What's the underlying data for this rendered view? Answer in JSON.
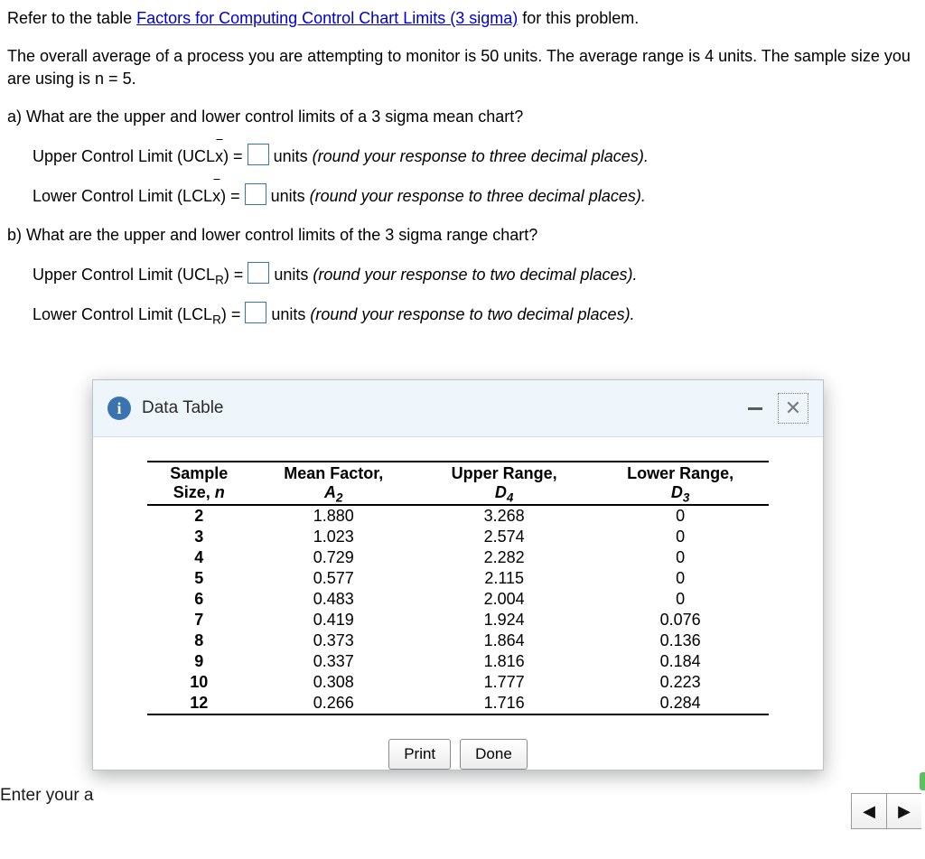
{
  "intro": {
    "prefix": "Refer to the table ",
    "link": "Factors for Computing Control Chart Limits (3 sigma)",
    "suffix": " for this problem."
  },
  "desc": "The overall average of a process you are attempting to monitor is 50 units. The average range is 4 units. The sample size you are using is n = 5.",
  "a_q": "a) What are the upper and lower control limits of a 3 sigma mean chart?",
  "a_ucl_pre": "Upper Control Limit (UCL",
  "a_ucl_post": ") = ",
  "a_lcl_pre": "Lower Control Limit (LCL",
  "a_lcl_post": ") = ",
  "units3": " units (round your response to three decimal places).",
  "b_q": "b) What are the upper and lower control limits of the 3 sigma range chart?",
  "bR": "R",
  "units2": " units (round your response to two decimal places).",
  "modal": {
    "title": "Data Table",
    "print": "Print",
    "done": "Done",
    "columns": {
      "c1a": "Sample",
      "c1b": "Size, n",
      "c2a": "Mean Factor,",
      "c2b": "A",
      "c2s": "2",
      "c3a": "Upper Range,",
      "c3b": "D",
      "c3s": "4",
      "c4a": "Lower Range,",
      "c4b": "D",
      "c4s": "3"
    },
    "rows": [
      {
        "n": "2",
        "a2": "1.880",
        "d4": "3.268",
        "d3": "0"
      },
      {
        "n": "3",
        "a2": "1.023",
        "d4": "2.574",
        "d3": "0"
      },
      {
        "n": "4",
        "a2": "0.729",
        "d4": "2.282",
        "d3": "0"
      },
      {
        "n": "5",
        "a2": "0.577",
        "d4": "2.115",
        "d3": "0"
      },
      {
        "n": "6",
        "a2": "0.483",
        "d4": "2.004",
        "d3": "0"
      },
      {
        "n": "7",
        "a2": "0.419",
        "d4": "1.924",
        "d3": "0.076"
      },
      {
        "n": "8",
        "a2": "0.373",
        "d4": "1.864",
        "d3": "0.136"
      },
      {
        "n": "9",
        "a2": "0.337",
        "d4": "1.816",
        "d3": "0.184"
      },
      {
        "n": "10",
        "a2": "0.308",
        "d4": "1.777",
        "d3": "0.223"
      },
      {
        "n": "12",
        "a2": "0.266",
        "d4": "1.716",
        "d3": "0.284"
      }
    ]
  },
  "enter": "Enter your a"
}
